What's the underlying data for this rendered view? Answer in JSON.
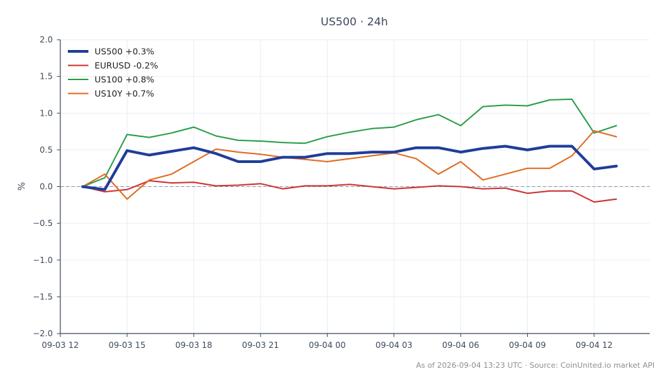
{
  "chart_data": {
    "type": "line",
    "title": "US500 · 24h",
    "xlabel": "",
    "ylabel": "%",
    "ylim": [
      -2.0,
      2.0
    ],
    "y_ticks": [
      2.0,
      1.5,
      1.0,
      0.5,
      0.0,
      -0.5,
      -1.0,
      -1.5,
      -2.0
    ],
    "y_tick_labels": [
      "2.0",
      "1.5",
      "1.0",
      "0.5",
      "0.0",
      "−0.5",
      "−1.0",
      "−1.5",
      "−2.0"
    ],
    "x_range": [
      "2026-09-03T12:00",
      "2026-09-04T14:30"
    ],
    "x_ticks": [
      {
        "t": "2026-09-03T12:00",
        "label": "09-03 12"
      },
      {
        "t": "2026-09-03T15:00",
        "label": "09-03 15"
      },
      {
        "t": "2026-09-03T18:00",
        "label": "09-03 18"
      },
      {
        "t": "2026-09-03T21:00",
        "label": "09-03 21"
      },
      {
        "t": "2026-09-04T00:00",
        "label": "09-04 00"
      },
      {
        "t": "2026-09-04T03:00",
        "label": "09-04 03"
      },
      {
        "t": "2026-09-04T06:00",
        "label": "09-04 06"
      },
      {
        "t": "2026-09-04T09:00",
        "label": "09-04 09"
      },
      {
        "t": "2026-09-04T12:00",
        "label": "09-04 12"
      }
    ],
    "grid": true,
    "zero_line": {
      "value": 0.0,
      "style": "dashed",
      "color": "#8a9bb0"
    },
    "legend_placement": "top-left",
    "x": [
      "2026-09-03T13:00",
      "2026-09-03T14:00",
      "2026-09-03T15:00",
      "2026-09-03T16:00",
      "2026-09-03T17:00",
      "2026-09-03T18:00",
      "2026-09-03T19:00",
      "2026-09-03T20:00",
      "2026-09-03T21:00",
      "2026-09-03T22:00",
      "2026-09-03T23:00",
      "2026-09-04T00:00",
      "2026-09-04T01:00",
      "2026-09-04T02:00",
      "2026-09-04T03:00",
      "2026-09-04T04:00",
      "2026-09-04T05:00",
      "2026-09-04T06:00",
      "2026-09-04T07:00",
      "2026-09-04T08:00",
      "2026-09-04T09:00",
      "2026-09-04T10:00",
      "2026-09-04T11:00",
      "2026-09-04T12:00",
      "2026-09-04T13:00"
    ],
    "series": [
      {
        "name": "US500 +0.3%",
        "color": "#1f3d99",
        "width": 4,
        "values": [
          0.0,
          -0.04,
          0.49,
          0.43,
          0.48,
          0.53,
          0.45,
          0.34,
          0.34,
          0.4,
          0.4,
          0.45,
          0.45,
          0.47,
          0.47,
          0.53,
          0.53,
          0.47,
          0.52,
          0.55,
          0.5,
          0.55,
          0.55,
          0.24,
          0.28
        ]
      },
      {
        "name": "EURUSD -0.2%",
        "color": "#cc3333",
        "width": 2,
        "values": [
          0.0,
          -0.07,
          -0.04,
          0.08,
          0.05,
          0.06,
          0.01,
          0.02,
          0.04,
          -0.03,
          0.01,
          0.01,
          0.03,
          0.0,
          -0.03,
          -0.01,
          0.01,
          0.0,
          -0.03,
          -0.02,
          -0.09,
          -0.06,
          -0.06,
          -0.21,
          -0.17
        ]
      },
      {
        "name": "US100 +0.8%",
        "color": "#2a9d4b",
        "width": 2,
        "values": [
          0.0,
          0.12,
          0.71,
          0.67,
          0.73,
          0.81,
          0.69,
          0.63,
          0.62,
          0.6,
          0.59,
          0.68,
          0.74,
          0.79,
          0.81,
          0.91,
          0.98,
          0.83,
          1.09,
          1.11,
          1.1,
          1.18,
          1.19,
          0.73,
          0.83
        ]
      },
      {
        "name": "US10Y +0.7%",
        "color": "#e06b20",
        "width": 2,
        "values": [
          0.0,
          0.17,
          -0.17,
          0.09,
          0.17,
          0.34,
          0.51,
          0.47,
          0.44,
          0.4,
          0.37,
          0.34,
          0.38,
          0.42,
          0.46,
          0.38,
          0.17,
          0.34,
          0.09,
          0.17,
          0.25,
          0.25,
          0.42,
          0.76,
          0.68
        ]
      }
    ]
  },
  "footer": "As of 2026-09-04 13:23 UTC · Source: CoinUnited.io market API"
}
